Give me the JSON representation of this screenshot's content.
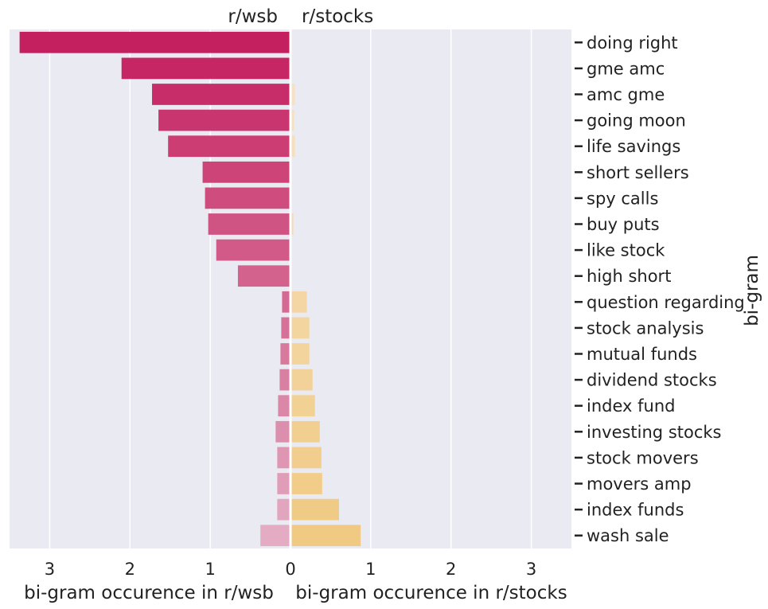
{
  "chart_data": {
    "type": "bar",
    "orientation": "horizontal-diverging",
    "left_title": "r/wsb",
    "right_title": "r/stocks",
    "xlabel_left": "bi-gram occurence in r/wsb",
    "xlabel_right": "bi-gram occurence in r/stocks",
    "ylabel": "bi-gram",
    "xlim": [
      -3.5,
      3.5
    ],
    "xticks": [
      -3,
      -2,
      -1,
      0,
      1,
      2,
      3
    ],
    "xtick_labels": [
      "3",
      "2",
      "1",
      "0",
      "1",
      "2",
      "3"
    ],
    "grid": true,
    "categories": [
      "doing right",
      "gme amc",
      "amc gme",
      "going moon",
      "life savings",
      "short sellers",
      "spy calls",
      "buy puts",
      "like stock",
      "high short",
      "question regarding",
      "stock analysis",
      "mutual funds",
      "dividend stocks",
      "index fund",
      "investing stocks",
      "stock movers",
      "movers amp",
      "index funds",
      "wash sale"
    ],
    "series": [
      {
        "name": "r/wsb",
        "values": [
          3.36,
          2.09,
          1.71,
          1.63,
          1.51,
          1.08,
          1.05,
          1.01,
          0.91,
          0.64,
          0.09,
          0.1,
          0.11,
          0.12,
          0.14,
          0.17,
          0.15,
          0.15,
          0.15,
          0.36
        ]
      },
      {
        "name": "r/stocks",
        "values": [
          0.0,
          0.0,
          0.04,
          0.03,
          0.04,
          0.0,
          0.0,
          0.02,
          0.0,
          0.0,
          0.19,
          0.22,
          0.22,
          0.26,
          0.29,
          0.35,
          0.37,
          0.38,
          0.59,
          0.86
        ]
      }
    ],
    "colors": {
      "wsb_start": "#c41f5e",
      "wsb_end": "#e3acc2",
      "stocks_start": "#f7e4c8",
      "stocks_end": "#f0ca82",
      "plot_bg": "#eaeaf2",
      "grid": "#ffffff"
    }
  }
}
